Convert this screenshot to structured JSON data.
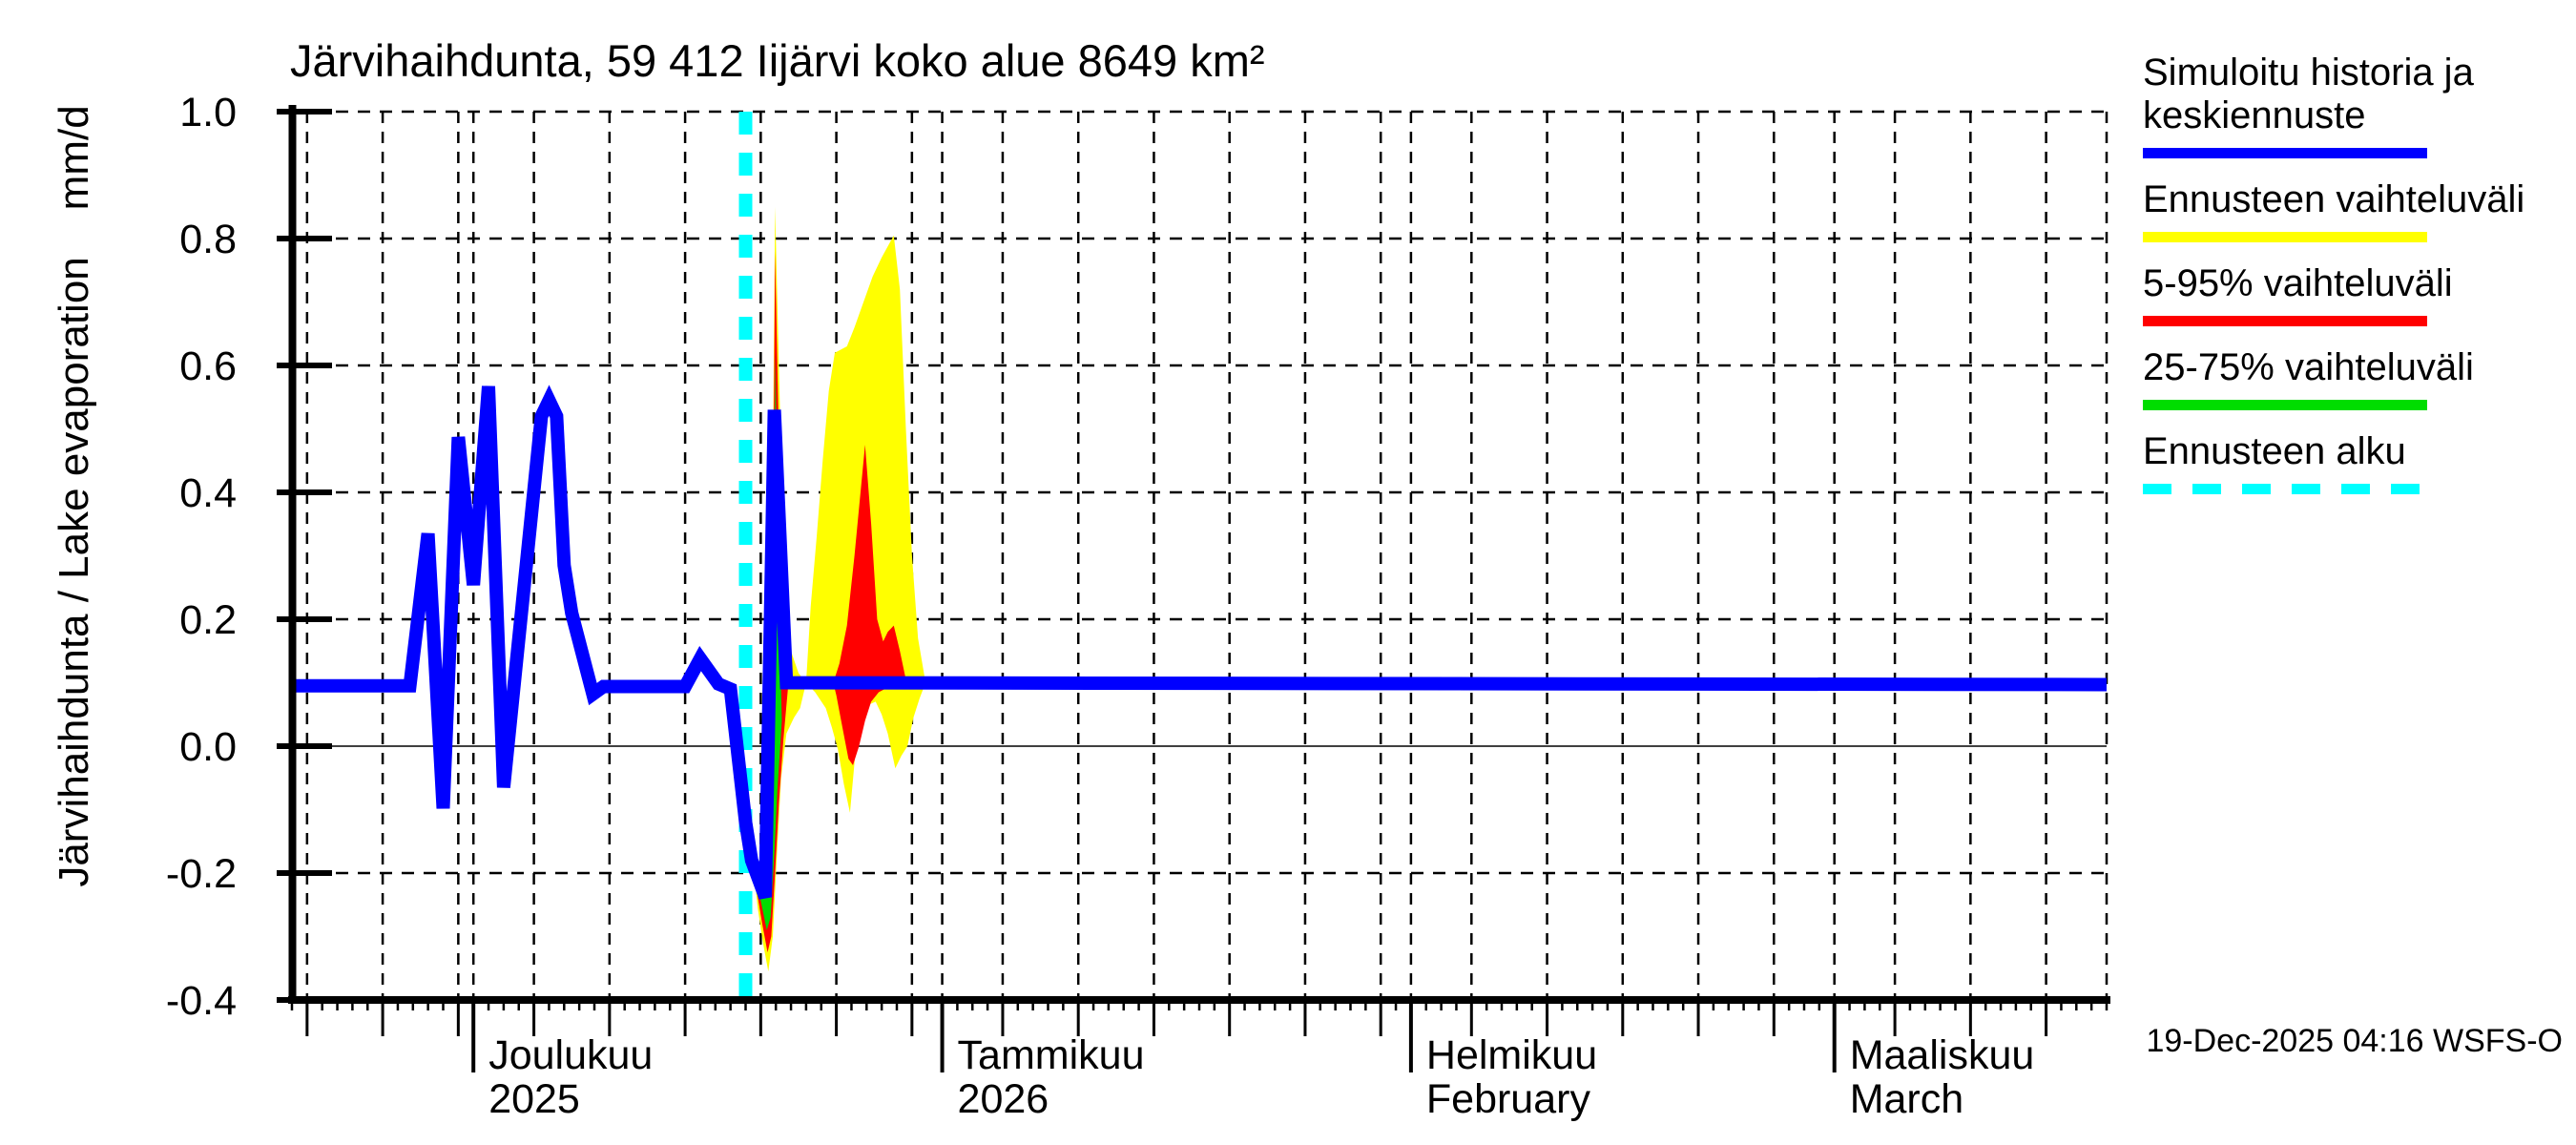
{
  "chart_data": {
    "type": "line",
    "title": "Järvihaihdunta, 59 412 Iijärvi koko alue 8649 km²",
    "ylabel": "Järvihaihdunta / Lake evaporation    mm/d",
    "timestamp": "19-Dec-2025 04:16 WSFS-O",
    "ylim": [
      -0.4,
      1.0
    ],
    "grid": true,
    "y_ticks": [
      {
        "value": 1.0,
        "label": "1.0"
      },
      {
        "value": 0.8,
        "label": "0.8"
      },
      {
        "value": 0.6,
        "label": "0.6"
      },
      {
        "value": 0.4,
        "label": "0.4"
      },
      {
        "value": 0.2,
        "label": "0.2"
      },
      {
        "value": 0.0,
        "label": "0.0"
      },
      {
        "value": -0.2,
        "label": "-0.2"
      },
      {
        "value": -0.4,
        "label": "-0.4"
      }
    ],
    "x_axis": {
      "range_days": [
        -12,
        108
      ],
      "day_zero": "1 Dec 2025",
      "grid_days": [
        -11,
        -6,
        -1,
        0,
        4,
        9,
        14,
        19,
        24,
        29,
        31,
        35,
        40,
        45,
        50,
        55,
        60,
        62,
        66,
        71,
        76,
        81,
        86,
        90,
        94,
        99,
        104
      ],
      "right_edge_day": 108,
      "month_ticks": [
        {
          "day": 0,
          "line1": "Joulukuu",
          "line2": "2025"
        },
        {
          "day": 31,
          "line1": "Tammikuu",
          "line2": "2026"
        },
        {
          "day": 62,
          "line1": "Helmikuu",
          "line2": "February"
        },
        {
          "day": 90,
          "line1": "Maaliskuu",
          "line2": "March"
        }
      ]
    },
    "forecast_start_day": 18,
    "series": [
      {
        "name": "Simuloitu historia ja keskiennuste",
        "color": "#0000ff",
        "points": [
          [
            -12,
            0.095
          ],
          [
            -4.2,
            0.095
          ],
          [
            -3,
            0.335
          ],
          [
            -2,
            -0.098
          ],
          [
            -1,
            0.487
          ],
          [
            0,
            0.254
          ],
          [
            1,
            0.567
          ],
          [
            2,
            -0.065
          ],
          [
            4.5,
            0.52
          ],
          [
            5,
            0.545
          ],
          [
            5.5,
            0.52
          ],
          [
            6,
            0.285
          ],
          [
            6.5,
            0.21
          ],
          [
            7.9,
            0.082
          ],
          [
            8.6,
            0.094
          ],
          [
            14,
            0.094
          ],
          [
            15,
            0.138
          ],
          [
            16.2,
            0.098
          ],
          [
            17,
            0.09
          ],
          [
            18,
            -0.12
          ],
          [
            18.4,
            -0.18
          ],
          [
            19.3,
            -0.238
          ],
          [
            19.9,
            0.53
          ],
          [
            20.7,
            0.1
          ],
          [
            108,
            0.097
          ]
        ]
      }
    ],
    "bands": [
      {
        "name": "Ennusteen vaihteluväli",
        "color": "#ffff00",
        "polygons": [
          [
            [
              17.4,
              0.03
            ],
            [
              18,
              -0.09
            ],
            [
              18.5,
              -0.155
            ],
            [
              19,
              -0.21
            ],
            [
              19.5,
              -0.09
            ],
            [
              19.75,
              0.3
            ],
            [
              19.95,
              0.85
            ],
            [
              20.3,
              0.5
            ],
            [
              20.6,
              0.27
            ],
            [
              21,
              0.15
            ],
            [
              21.5,
              0.115
            ],
            [
              22,
              0.1
            ],
            [
              21.6,
              0.06
            ],
            [
              21.2,
              0.045
            ],
            [
              20.7,
              0.02
            ],
            [
              20.35,
              -0.05
            ],
            [
              20.05,
              -0.18
            ],
            [
              19.8,
              -0.3
            ],
            [
              19.5,
              -0.355
            ],
            [
              19.15,
              -0.31
            ],
            [
              18.8,
              -0.255
            ],
            [
              18.4,
              -0.16
            ],
            [
              17.9,
              -0.05
            ],
            [
              17.4,
              0.03
            ]
          ],
          [
            [
              22,
              0.1
            ],
            [
              22.3,
              0.22
            ],
            [
              22.7,
              0.33
            ],
            [
              23.1,
              0.45
            ],
            [
              23.5,
              0.56
            ],
            [
              23.9,
              0.62
            ],
            [
              24.7,
              0.63
            ],
            [
              25.2,
              0.66
            ],
            [
              25.8,
              0.7
            ],
            [
              26.4,
              0.74
            ],
            [
              27,
              0.77
            ],
            [
              27.8,
              0.805
            ],
            [
              28.2,
              0.72
            ],
            [
              28.6,
              0.5
            ],
            [
              29,
              0.3
            ],
            [
              29.4,
              0.17
            ],
            [
              29.9,
              0.1
            ],
            [
              29.5,
              0.075
            ],
            [
              29.1,
              0.045
            ],
            [
              28.7,
              0.0
            ],
            [
              28.3,
              -0.015
            ],
            [
              27.9,
              -0.035
            ],
            [
              27.4,
              0.02
            ],
            [
              27,
              0.05
            ],
            [
              26.6,
              0.07
            ],
            [
              26.1,
              0.065
            ],
            [
              25.7,
              0.04
            ],
            [
              25.3,
              0.0
            ],
            [
              24.9,
              -0.105
            ],
            [
              24.5,
              -0.06
            ],
            [
              24.1,
              -0.005
            ],
            [
              23.7,
              0.03
            ],
            [
              23.3,
              0.06
            ],
            [
              22.6,
              0.085
            ],
            [
              22,
              0.1
            ]
          ]
        ]
      },
      {
        "name": "5-95% vaihteluväli",
        "color": "#ff0000",
        "polygons": [
          [
            [
              17.6,
              0.0
            ],
            [
              18.1,
              -0.1
            ],
            [
              18.6,
              -0.17
            ],
            [
              19.05,
              -0.215
            ],
            [
              19.5,
              -0.1
            ],
            [
              19.8,
              0.3
            ],
            [
              19.95,
              0.78
            ],
            [
              20.25,
              0.42
            ],
            [
              20.55,
              0.18
            ],
            [
              20.85,
              0.105
            ],
            [
              20.5,
              0.01
            ],
            [
              20.2,
              -0.09
            ],
            [
              19.95,
              -0.2
            ],
            [
              19.7,
              -0.3
            ],
            [
              19.45,
              -0.325
            ],
            [
              19.1,
              -0.28
            ],
            [
              18.75,
              -0.23
            ],
            [
              18.4,
              -0.14
            ],
            [
              17.95,
              -0.04
            ],
            [
              17.6,
              0.0
            ]
          ],
          [
            [
              23.8,
              0.1
            ],
            [
              24.2,
              0.13
            ],
            [
              24.7,
              0.19
            ],
            [
              25.2,
              0.3
            ],
            [
              25.9,
              0.475
            ],
            [
              26.3,
              0.35
            ],
            [
              26.7,
              0.2
            ],
            [
              27.1,
              0.165
            ],
            [
              27.4,
              0.18
            ],
            [
              27.8,
              0.19
            ],
            [
              28.2,
              0.15
            ],
            [
              28.6,
              0.105
            ],
            [
              28.2,
              0.095
            ],
            [
              27.7,
              0.09
            ],
            [
              27.2,
              0.09
            ],
            [
              26.8,
              0.085
            ],
            [
              26.3,
              0.07
            ],
            [
              25.9,
              0.04
            ],
            [
              25.5,
              0.0
            ],
            [
              25.1,
              -0.03
            ],
            [
              24.8,
              -0.02
            ],
            [
              24.4,
              0.03
            ],
            [
              24.0,
              0.08
            ],
            [
              23.8,
              0.1
            ]
          ]
        ]
      },
      {
        "name": "25-75% vaihteluväli",
        "color": "#00dd00",
        "polygons": [
          [
            [
              17.8,
              -0.02
            ],
            [
              18.3,
              -0.12
            ],
            [
              18.75,
              -0.18
            ],
            [
              19.1,
              -0.215
            ],
            [
              19.5,
              -0.12
            ],
            [
              19.85,
              0.25
            ],
            [
              19.97,
              0.62
            ],
            [
              20.15,
              0.28
            ],
            [
              20.4,
              0.04
            ],
            [
              20.1,
              -0.07
            ],
            [
              19.9,
              -0.17
            ],
            [
              19.65,
              -0.27
            ],
            [
              19.4,
              -0.29
            ],
            [
              19.1,
              -0.255
            ],
            [
              18.75,
              -0.215
            ],
            [
              18.4,
              -0.125
            ],
            [
              17.8,
              -0.02
            ]
          ]
        ]
      }
    ],
    "colors": {
      "median_line": "#0000ff",
      "full_range": "#ffff00",
      "range_5_95": "#ff0000",
      "range_25_75": "#00dd00",
      "forecast_start": "#00ffff",
      "grid": "#000000",
      "zero_line": "#404040",
      "axis": "#000000"
    }
  },
  "legend": {
    "entries": [
      {
        "label": "Simuloitu historia ja keskiennuste",
        "color": "#0000ff",
        "style": "solid"
      },
      {
        "label": "Ennusteen vaihteluväli",
        "color": "#ffff00",
        "style": "solid"
      },
      {
        "label": "5-95% vaihteluväli",
        "color": "#ff0000",
        "style": "solid"
      },
      {
        "label": "25-75% vaihteluväli",
        "color": "#00dd00",
        "style": "solid"
      },
      {
        "label": "Ennusteen alku",
        "color": "#00ffff",
        "style": "dashed"
      }
    ]
  }
}
